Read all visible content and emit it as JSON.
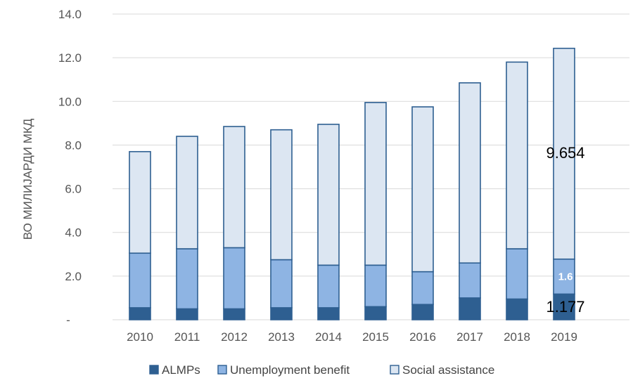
{
  "chart_data": {
    "type": "bar",
    "stacked": true,
    "categories": [
      "2010",
      "2011",
      "2012",
      "2013",
      "2014",
      "2015",
      "2016",
      "2017",
      "2018",
      "2019"
    ],
    "series": [
      {
        "name": "ALMPs",
        "color": "#2e5f91",
        "values": [
          0.55,
          0.5,
          0.5,
          0.55,
          0.55,
          0.6,
          0.7,
          1.0,
          0.95,
          1.177
        ]
      },
      {
        "name": "Unemployment benefit",
        "color": "#8eb4e3",
        "values": [
          2.5,
          2.75,
          2.8,
          2.2,
          1.95,
          1.9,
          1.5,
          1.6,
          2.3,
          1.6
        ]
      },
      {
        "name": "Social assistance",
        "color": "#dce6f2",
        "values": [
          4.65,
          5.15,
          5.55,
          5.95,
          6.45,
          7.45,
          7.55,
          8.25,
          8.55,
          9.654
        ]
      }
    ],
    "ylabel": "ВО МИЛИЈАРДИ МКД",
    "xlabel": "",
    "ylim": [
      0,
      14
    ],
    "yticks": [
      "-",
      "2.0",
      "4.0",
      "6.0",
      "8.0",
      "10.0",
      "12.0",
      "14.0"
    ],
    "grid": true,
    "legend_position": "bottom",
    "bar_outline_color": "#2e5f91",
    "data_labels": [
      {
        "category": "2019",
        "series": "Social assistance",
        "text": "9.654"
      },
      {
        "category": "2019",
        "series": "Unemployment benefit",
        "text": "1.6"
      },
      {
        "category": "2019",
        "series": "ALMPs",
        "text": "1.177"
      }
    ]
  }
}
